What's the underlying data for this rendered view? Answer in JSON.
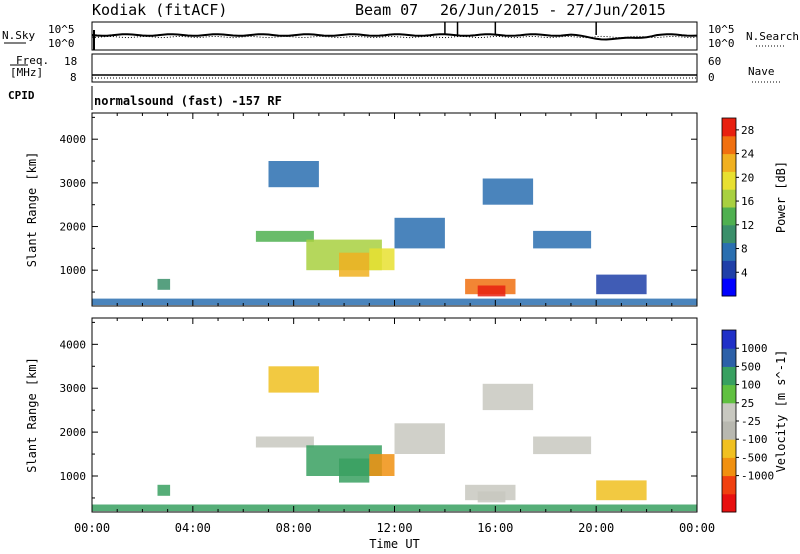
{
  "header": {
    "station": "Kodiak (fitACF)",
    "beam": "Beam 07",
    "dates": "26/Jun/2015 - 27/Jun/2015"
  },
  "noise_panel": {
    "left_label": "N.Sky",
    "right_label": "N.Search",
    "left_ticks": [
      "10^5",
      "10^0"
    ],
    "right_ticks": [
      "10^5",
      "10^0"
    ]
  },
  "freq_panel": {
    "left_label_1": "Freq.",
    "left_label_2": "[MHz]",
    "left_ticks": [
      "18",
      "8"
    ],
    "right_ticks": [
      "60",
      "0"
    ],
    "right_label": "Nave"
  },
  "cpid": {
    "label": "CPID",
    "text": "normalsound (fast) -157 RF"
  },
  "chart_data": [
    {
      "type": "heatmap",
      "name": "power",
      "ylabel": "Slant Range [km]",
      "yticks": [
        1000,
        2000,
        3000,
        4000
      ],
      "ylim": [
        180,
        4600
      ],
      "xlim_hours": [
        0,
        24
      ],
      "colorbar_label": "Power [dB]",
      "colorbar_ticks": [
        "28",
        "24",
        "20",
        "16",
        "12",
        "8",
        "4"
      ],
      "colorbar_colors": [
        "#0000ff",
        "#1f3fa8",
        "#2a6fb0",
        "#3a8f6a",
        "#4fb050",
        "#a8d040",
        "#e8e030",
        "#f0b020",
        "#f07010",
        "#e82010"
      ],
      "regions": [
        {
          "t": [
            0.0,
            24.0
          ],
          "r": [
            200,
            350
          ],
          "v": 8
        },
        {
          "t": [
            2.6,
            3.1
          ],
          "r": [
            550,
            800
          ],
          "v": 10
        },
        {
          "t": [
            6.5,
            8.8
          ],
          "r": [
            1650,
            1900
          ],
          "v": 14
        },
        {
          "t": [
            7.0,
            9.0
          ],
          "r": [
            2900,
            3500
          ],
          "v": 7
        },
        {
          "t": [
            8.5,
            11.5
          ],
          "r": [
            1000,
            1700
          ],
          "v": 16
        },
        {
          "t": [
            9.8,
            11.0
          ],
          "r": [
            850,
            1400
          ],
          "v": 22
        },
        {
          "t": [
            11.0,
            12.0
          ],
          "r": [
            1000,
            1500
          ],
          "v": 20
        },
        {
          "t": [
            12.0,
            14.0
          ],
          "r": [
            1500,
            2200
          ],
          "v": 6
        },
        {
          "t": [
            14.8,
            16.8
          ],
          "r": [
            450,
            800
          ],
          "v": 24
        },
        {
          "t": [
            15.3,
            16.4
          ],
          "r": [
            400,
            650
          ],
          "v": 28
        },
        {
          "t": [
            15.5,
            17.5
          ],
          "r": [
            2500,
            3100
          ],
          "v": 6
        },
        {
          "t": [
            17.5,
            19.8
          ],
          "r": [
            1500,
            1900
          ],
          "v": 7
        },
        {
          "t": [
            20.0,
            22.0
          ],
          "r": [
            450,
            900
          ],
          "v": 5
        }
      ]
    },
    {
      "type": "heatmap",
      "name": "velocity",
      "ylabel": "Slant Range [km]",
      "yticks": [
        1000,
        2000,
        3000,
        4000
      ],
      "ylim": [
        180,
        4600
      ],
      "xlim_hours": [
        0,
        24
      ],
      "xlabel": "Time UT",
      "xticks": [
        "00:00",
        "04:00",
        "08:00",
        "12:00",
        "16:00",
        "20:00",
        "00:00"
      ],
      "colorbar_label": "Velocity [m s^-1]",
      "colorbar_ticks": [
        "1000",
        "500",
        "100",
        "25",
        "-25",
        "-100",
        "-500",
        "-1000"
      ],
      "colorbar_colors": [
        "#e81010",
        "#f04010",
        "#f09010",
        "#f0c020",
        "#b8b8b0",
        "#c8c8c0",
        "#60c040",
        "#38a060",
        "#2c60a8",
        "#2030c8"
      ],
      "regions": [
        {
          "t": [
            0.0,
            24.0
          ],
          "r": [
            200,
            350
          ],
          "v": 120
        },
        {
          "t": [
            2.6,
            3.1
          ],
          "r": [
            550,
            800
          ],
          "v": 150
        },
        {
          "t": [
            6.5,
            8.8
          ],
          "r": [
            1650,
            1900
          ],
          "v": 0
        },
        {
          "t": [
            7.0,
            9.0
          ],
          "r": [
            2900,
            3500
          ],
          "v": -60
        },
        {
          "t": [
            8.5,
            11.5
          ],
          "r": [
            1000,
            1700
          ],
          "v": 250
        },
        {
          "t": [
            9.8,
            11.0
          ],
          "r": [
            850,
            1400
          ],
          "v": 400
        },
        {
          "t": [
            11.0,
            12.0
          ],
          "r": [
            1000,
            1500
          ],
          "v": -150
        },
        {
          "t": [
            12.0,
            14.0
          ],
          "r": [
            1500,
            2200
          ],
          "v": 0
        },
        {
          "t": [
            14.8,
            16.8
          ],
          "r": [
            450,
            800
          ],
          "v": 0
        },
        {
          "t": [
            15.3,
            16.4
          ],
          "r": [
            400,
            650
          ],
          "v": 0
        },
        {
          "t": [
            15.5,
            17.5
          ],
          "r": [
            2500,
            3100
          ],
          "v": 0
        },
        {
          "t": [
            17.5,
            19.8
          ],
          "r": [
            1500,
            1900
          ],
          "v": 0
        },
        {
          "t": [
            20.0,
            22.0
          ],
          "r": [
            450,
            900
          ],
          "v": -40
        }
      ]
    }
  ]
}
